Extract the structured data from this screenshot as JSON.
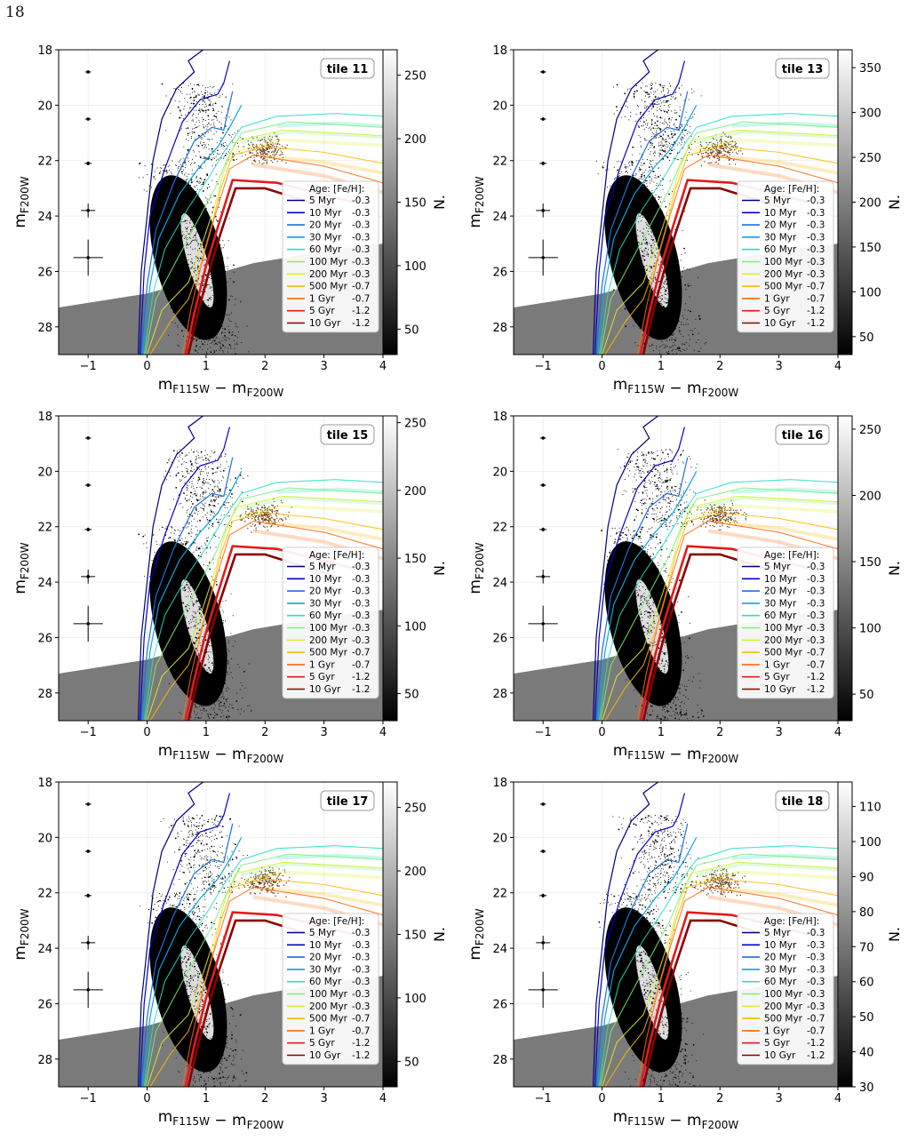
{
  "page_number": "18",
  "chart_data": [
    {
      "type": "scatter",
      "tile": "tile 11",
      "xlabel": "m_F115W − m_F200W",
      "ylabel": "m_F200W",
      "cbar_label": "N.",
      "xlim": [
        -1.5,
        4
      ],
      "ylim": [
        29,
        18
      ],
      "xticks": [
        "−1",
        "0",
        "1",
        "2",
        "3",
        "4"
      ],
      "yticks": [
        "18",
        "20",
        "22",
        "24",
        "26",
        "28"
      ],
      "cbar_range": [
        30,
        270
      ],
      "cbar_ticks": [
        "50",
        "100",
        "150",
        "200",
        "250"
      ],
      "grid": true,
      "legend_title": "Age:    [Fe/H]:",
      "legend": [
        {
          "age": "5 Myr",
          "feh": "-0.3",
          "color": "#000080"
        },
        {
          "age": "10 Myr",
          "feh": "-0.3",
          "color": "#0000cd"
        },
        {
          "age": "20 Myr",
          "feh": "-0.3",
          "color": "#1f6fdc"
        },
        {
          "age": "30 Myr",
          "feh": "-0.3",
          "color": "#0aa4e0"
        },
        {
          "age": "60 Myr",
          "feh": "-0.3",
          "color": "#26e0c0"
        },
        {
          "age": "100 Myr",
          "feh": "-0.3",
          "color": "#7bf07b"
        },
        {
          "age": "200 Myr",
          "feh": "-0.3",
          "color": "#dcf030"
        },
        {
          "age": "500 Myr",
          "feh": "-0.7",
          "color": "#ffb800"
        },
        {
          "age": "1 Gyr",
          "feh": "-0.7",
          "color": "#ff6a10"
        },
        {
          "age": "5 Gyr",
          "feh": "-1.2",
          "color": "#e41a1a"
        },
        {
          "age": "10 Gyr",
          "feh": "-1.2",
          "color": "#8b0000"
        }
      ]
    },
    {
      "type": "scatter",
      "tile": "tile 13",
      "xlabel": "m_F115W − m_F200W",
      "ylabel": "m_F200W",
      "cbar_label": "N.",
      "xlim": [
        -1.5,
        4
      ],
      "ylim": [
        29,
        18
      ],
      "xticks": [
        "−1",
        "0",
        "1",
        "2",
        "3",
        "4"
      ],
      "yticks": [
        "18",
        "20",
        "22",
        "24",
        "26",
        "28"
      ],
      "cbar_range": [
        30,
        370
      ],
      "cbar_ticks": [
        "50",
        "100",
        "150",
        "200",
        "250",
        "300",
        "350"
      ],
      "grid": true,
      "legend_title": "Age:    [Fe/H]:",
      "legend": [
        {
          "age": "5 Myr",
          "feh": "-0.3",
          "color": "#000080"
        },
        {
          "age": "10 Myr",
          "feh": "-0.3",
          "color": "#0000cd"
        },
        {
          "age": "20 Myr",
          "feh": "-0.3",
          "color": "#1f6fdc"
        },
        {
          "age": "30 Myr",
          "feh": "-0.3",
          "color": "#0aa4e0"
        },
        {
          "age": "60 Myr",
          "feh": "-0.3",
          "color": "#26e0c0"
        },
        {
          "age": "100 Myr",
          "feh": "-0.3",
          "color": "#7bf07b"
        },
        {
          "age": "200 Myr",
          "feh": "-0.3",
          "color": "#dcf030"
        },
        {
          "age": "500 Myr",
          "feh": "-0.7",
          "color": "#ffb800"
        },
        {
          "age": "1 Gyr",
          "feh": "-0.7",
          "color": "#ff6a10"
        },
        {
          "age": "5 Gyr",
          "feh": "-1.2",
          "color": "#e41a1a"
        },
        {
          "age": "10 Gyr",
          "feh": "-1.2",
          "color": "#8b0000"
        }
      ]
    },
    {
      "type": "scatter",
      "tile": "tile 15",
      "xlabel": "m_F115W − m_F200W",
      "ylabel": "m_F200W",
      "cbar_label": "N.",
      "xlim": [
        -1.5,
        4
      ],
      "ylim": [
        29,
        18
      ],
      "xticks": [
        "−1",
        "0",
        "1",
        "2",
        "3",
        "4"
      ],
      "yticks": [
        "18",
        "20",
        "22",
        "24",
        "26",
        "28"
      ],
      "cbar_range": [
        30,
        255
      ],
      "cbar_ticks": [
        "50",
        "100",
        "150",
        "200",
        "250"
      ],
      "grid": true,
      "legend_title": "Age:    [Fe/H]:",
      "legend": [
        {
          "age": "5 Myr",
          "feh": "-0.3",
          "color": "#000080"
        },
        {
          "age": "10 Myr",
          "feh": "-0.3",
          "color": "#0000cd"
        },
        {
          "age": "20 Myr",
          "feh": "-0.3",
          "color": "#1f6fdc"
        },
        {
          "age": "30 Myr",
          "feh": "-0.3",
          "color": "#0aa4e0"
        },
        {
          "age": "60 Myr",
          "feh": "-0.3",
          "color": "#26e0c0"
        },
        {
          "age": "100 Myr",
          "feh": "-0.3",
          "color": "#7bf07b"
        },
        {
          "age": "200 Myr",
          "feh": "-0.3",
          "color": "#dcf030"
        },
        {
          "age": "500 Myr",
          "feh": "-0.7",
          "color": "#ffb800"
        },
        {
          "age": "1 Gyr",
          "feh": "-0.7",
          "color": "#ff6a10"
        },
        {
          "age": "5 Gyr",
          "feh": "-1.2",
          "color": "#e41a1a"
        },
        {
          "age": "10 Gyr",
          "feh": "-1.2",
          "color": "#8b0000"
        }
      ]
    },
    {
      "type": "scatter",
      "tile": "tile 16",
      "xlabel": "m_F115W − m_F200W",
      "ylabel": "m_F200W",
      "cbar_label": "N.",
      "xlim": [
        -1.5,
        4
      ],
      "ylim": [
        29,
        18
      ],
      "xticks": [
        "−1",
        "0",
        "1",
        "2",
        "3",
        "4"
      ],
      "yticks": [
        "18",
        "20",
        "22",
        "24",
        "26",
        "28"
      ],
      "cbar_range": [
        30,
        260
      ],
      "cbar_ticks": [
        "50",
        "100",
        "150",
        "200",
        "250"
      ],
      "grid": true,
      "legend_title": "Age:    [Fe/H]:",
      "legend": [
        {
          "age": "5 Myr",
          "feh": "-0.3",
          "color": "#000080"
        },
        {
          "age": "10 Myr",
          "feh": "-0.3",
          "color": "#0000cd"
        },
        {
          "age": "20 Myr",
          "feh": "-0.3",
          "color": "#1f6fdc"
        },
        {
          "age": "30 Myr",
          "feh": "-0.3",
          "color": "#0aa4e0"
        },
        {
          "age": "60 Myr",
          "feh": "-0.3",
          "color": "#26e0c0"
        },
        {
          "age": "100 Myr",
          "feh": "-0.3",
          "color": "#7bf07b"
        },
        {
          "age": "200 Myr",
          "feh": "-0.3",
          "color": "#dcf030"
        },
        {
          "age": "500 Myr",
          "feh": "-0.7",
          "color": "#ffb800"
        },
        {
          "age": "1 Gyr",
          "feh": "-0.7",
          "color": "#ff6a10"
        },
        {
          "age": "5 Gyr",
          "feh": "-1.2",
          "color": "#e41a1a"
        },
        {
          "age": "10 Gyr",
          "feh": "-1.2",
          "color": "#8b0000"
        }
      ]
    },
    {
      "type": "scatter",
      "tile": "tile 17",
      "xlabel": "m_F115W − m_F200W",
      "ylabel": "m_F200W",
      "cbar_label": "N.",
      "xlim": [
        -1.5,
        4
      ],
      "ylim": [
        29,
        18
      ],
      "xticks": [
        "−1",
        "0",
        "1",
        "2",
        "3",
        "4"
      ],
      "yticks": [
        "18",
        "20",
        "22",
        "24",
        "26",
        "28"
      ],
      "cbar_range": [
        30,
        270
      ],
      "cbar_ticks": [
        "50",
        "100",
        "150",
        "200",
        "250"
      ],
      "grid": true,
      "legend_title": "Age:    [Fe/H]:",
      "legend": [
        {
          "age": "5 Myr",
          "feh": "-0.3",
          "color": "#000080"
        },
        {
          "age": "10 Myr",
          "feh": "-0.3",
          "color": "#0000cd"
        },
        {
          "age": "20 Myr",
          "feh": "-0.3",
          "color": "#1f6fdc"
        },
        {
          "age": "30 Myr",
          "feh": "-0.3",
          "color": "#0aa4e0"
        },
        {
          "age": "60 Myr",
          "feh": "-0.3",
          "color": "#26e0c0"
        },
        {
          "age": "100 Myr",
          "feh": "-0.3",
          "color": "#7bf07b"
        },
        {
          "age": "200 Myr",
          "feh": "-0.3",
          "color": "#dcf030"
        },
        {
          "age": "500 Myr",
          "feh": "-0.7",
          "color": "#ffb800"
        },
        {
          "age": "1 Gyr",
          "feh": "-0.7",
          "color": "#ff6a10"
        },
        {
          "age": "5 Gyr",
          "feh": "-1.2",
          "color": "#e41a1a"
        },
        {
          "age": "10 Gyr",
          "feh": "-1.2",
          "color": "#8b0000"
        }
      ]
    },
    {
      "type": "scatter",
      "tile": "tile 18",
      "xlabel": "m_F115W − m_F200W",
      "ylabel": "m_F200W",
      "cbar_label": "N.",
      "xlim": [
        -1.5,
        4
      ],
      "ylim": [
        29,
        18
      ],
      "xticks": [
        "−1",
        "0",
        "1",
        "2",
        "3",
        "4"
      ],
      "yticks": [
        "18",
        "20",
        "22",
        "24",
        "26",
        "28"
      ],
      "cbar_range": [
        30,
        117
      ],
      "cbar_ticks": [
        "30",
        "40",
        "50",
        "60",
        "70",
        "80",
        "90",
        "100",
        "110"
      ],
      "grid": true,
      "legend_title": "Age:    [Fe/H]:",
      "legend": [
        {
          "age": "5 Myr",
          "feh": "-0.3",
          "color": "#000080"
        },
        {
          "age": "10 Myr",
          "feh": "-0.3",
          "color": "#0000cd"
        },
        {
          "age": "20 Myr",
          "feh": "-0.3",
          "color": "#1f6fdc"
        },
        {
          "age": "30 Myr",
          "feh": "-0.3",
          "color": "#0aa4e0"
        },
        {
          "age": "60 Myr",
          "feh": "-0.3",
          "color": "#26e0c0"
        },
        {
          "age": "100 Myr",
          "feh": "-0.3",
          "color": "#7bf07b"
        },
        {
          "age": "200 Myr",
          "feh": "-0.3",
          "color": "#dcf030"
        },
        {
          "age": "500 Myr",
          "feh": "-0.7",
          "color": "#ffb800"
        },
        {
          "age": "1 Gyr",
          "feh": "-0.7",
          "color": "#ff6a10"
        },
        {
          "age": "5 Gyr",
          "feh": "-1.2",
          "color": "#e41a1a"
        },
        {
          "age": "10 Gyr",
          "feh": "-1.2",
          "color": "#8b0000"
        }
      ]
    }
  ]
}
